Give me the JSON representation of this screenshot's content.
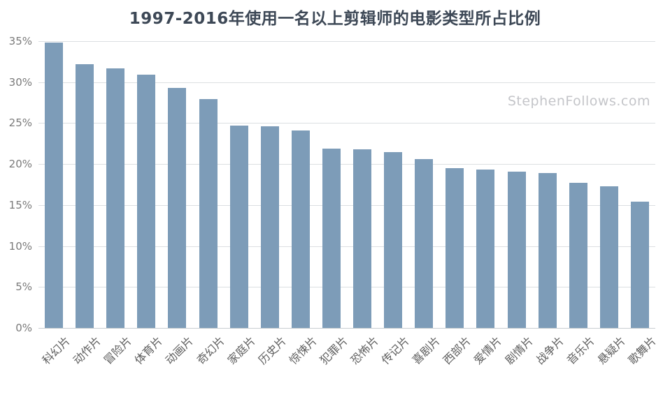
{
  "title": "1997-2016年使用一名以上剪辑师的电影类型所占比例",
  "watermark": "StephenFollows.com",
  "colors": {
    "bar": "#7d9cb8",
    "title": "#3d4856",
    "y_axis_label": "#7a7a7a",
    "x_axis_label": "#606060",
    "gridline": "#dcdfe2",
    "baseline": "#c9cdd1",
    "watermark": "#c4c5c9",
    "background": "#ffffff"
  },
  "chart_data": {
    "type": "bar",
    "title": "1997-2016年使用一名以上剪辑师的电影类型所占比例",
    "categories": [
      "科幻片",
      "动作片",
      "冒险片",
      "体育片",
      "动画片",
      "奇幻片",
      "家庭片",
      "历史片",
      "惊悚片",
      "犯罪片",
      "恐怖片",
      "传记片",
      "喜剧片",
      "西部片",
      "爱情片",
      "剧情片",
      "战争片",
      "音乐片",
      "悬疑片",
      "歌舞片"
    ],
    "values": [
      34.8,
      32.2,
      31.7,
      30.9,
      29.3,
      27.9,
      24.7,
      24.6,
      24.1,
      21.9,
      21.8,
      21.5,
      20.6,
      19.5,
      19.3,
      19.1,
      18.9,
      17.7,
      17.3,
      15.4
    ],
    "value_unit": "%",
    "xlabel": "",
    "ylabel": "",
    "ylim": [
      0,
      35
    ],
    "ytick_step": 5,
    "ytick_labels": [
      "0%",
      "5%",
      "10%",
      "15%",
      "20%",
      "25%",
      "30%",
      "35%"
    ],
    "grid": true,
    "legend": false,
    "x_label_rotation_deg": 45
  }
}
